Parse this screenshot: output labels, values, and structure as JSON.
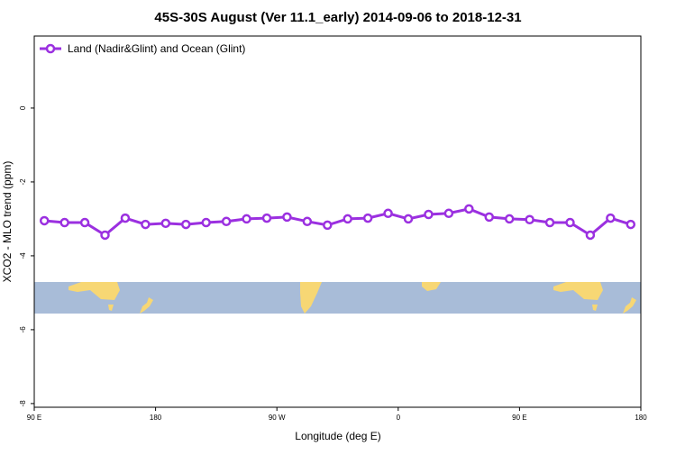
{
  "chart_data": {
    "type": "line",
    "title": "45S-30S August (Ver 11.1_early)   2014-09-06 to 2018-12-31",
    "xlabel": "Longitude (deg E)",
    "ylabel": "XCO2 - MLO trend (ppm)",
    "xlim": [
      90,
      540
    ],
    "ylim": [
      -8.1,
      1.95
    ],
    "xticks": [
      {
        "value": 90,
        "label": "90 E"
      },
      180,
      {
        "value": 270,
        "label": "90 W"
      },
      {
        "value": 360,
        "label": "0"
      },
      {
        "value": 450,
        "label": "90 E"
      },
      {
        "value": 540,
        "label": "180"
      }
    ],
    "yticks": [
      0,
      -2,
      -4,
      -6,
      -8
    ],
    "legend": "upper left",
    "series": [
      {
        "name": "Land (Nadir&Glint) and Ocean (Glint)",
        "color": "#9b30e0",
        "x": [
          97.5,
          112.5,
          127.5,
          142.5,
          157.5,
          172.5,
          187.5,
          202.5,
          217.5,
          232.5,
          247.5,
          262.5,
          277.5,
          292.5,
          307.5,
          322.5,
          337.5,
          352.5,
          367.5,
          382.5,
          397.5,
          412.5,
          427.5,
          442.5,
          457.5,
          472.5,
          487.5,
          502.5,
          517.5,
          532.5
        ],
        "values": [
          -3.05,
          -3.1,
          -3.1,
          -3.44,
          -2.98,
          -3.15,
          -3.12,
          -3.15,
          -3.1,
          -3.07,
          -3.0,
          -2.98,
          -2.95,
          -3.07,
          -3.17,
          -3.0,
          -2.98,
          -2.85,
          -3.0,
          -2.88,
          -2.85,
          -2.73,
          -2.95,
          -3.0,
          -3.02,
          -3.1,
          -3.1,
          -3.44,
          -2.98,
          -3.15
        ]
      }
    ]
  }
}
